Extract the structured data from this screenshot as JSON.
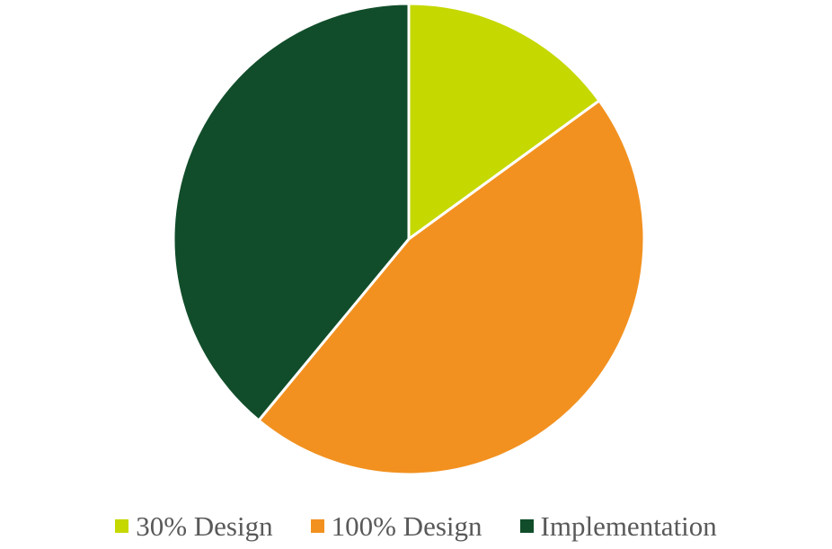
{
  "chart_data": {
    "type": "pie",
    "categories": [
      "30% Design",
      "100% Design",
      "Implementation"
    ],
    "values": [
      15,
      46,
      39
    ],
    "colors": [
      "#c5d800",
      "#f29120",
      "#114d2a"
    ],
    "title": "",
    "legend_position": "bottom",
    "start_angle": "top",
    "direction": "clockwise"
  },
  "legend": {
    "items": [
      {
        "label": "30% Design",
        "color": "#c5d800"
      },
      {
        "label": "100% Design",
        "color": "#f29120"
      },
      {
        "label": "Implementation",
        "color": "#114d2a"
      }
    ]
  }
}
